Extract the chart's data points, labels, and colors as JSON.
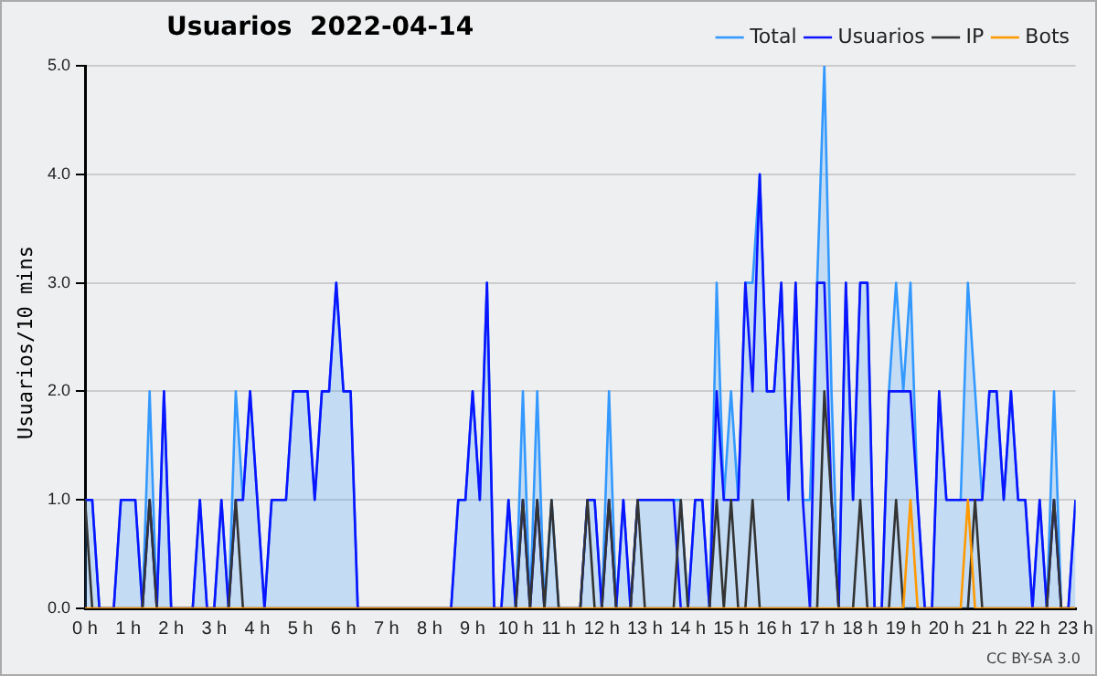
{
  "chart_data": {
    "type": "line",
    "title": "Usuarios  2022-04-14",
    "ylabel": "Usuarios/10 mins",
    "x": [
      0,
      0.167,
      0.333,
      0.5,
      0.667,
      0.833,
      1,
      1.167,
      1.333,
      1.5,
      1.667,
      1.833,
      2,
      2.167,
      2.333,
      2.5,
      2.667,
      2.833,
      3,
      3.167,
      3.333,
      3.5,
      3.667,
      3.833,
      4,
      4.167,
      4.333,
      4.5,
      4.667,
      4.833,
      5,
      5.167,
      5.333,
      5.5,
      5.667,
      5.833,
      6,
      6.167,
      6.333,
      6.5,
      6.667,
      6.833,
      7,
      7.167,
      7.333,
      7.5,
      7.667,
      7.833,
      8,
      8.167,
      8.333,
      8.5,
      8.667,
      8.833,
      9,
      9.167,
      9.333,
      9.5,
      9.667,
      9.833,
      10,
      10.167,
      10.333,
      10.5,
      10.667,
      10.833,
      11,
      11.167,
      11.333,
      11.5,
      11.667,
      11.833,
      12,
      12.167,
      12.333,
      12.5,
      12.667,
      12.833,
      13,
      13.167,
      13.333,
      13.5,
      13.667,
      13.833,
      14,
      14.167,
      14.333,
      14.5,
      14.667,
      14.833,
      15,
      15.167,
      15.333,
      15.5,
      15.667,
      15.833,
      16,
      16.167,
      16.333,
      16.5,
      16.667,
      16.833,
      17,
      17.167,
      17.333,
      17.5,
      17.667,
      17.833,
      18,
      18.167,
      18.333,
      18.5,
      18.667,
      18.833,
      19,
      19.167,
      19.333,
      19.5,
      19.667,
      19.833,
      20,
      20.167,
      20.333,
      20.5,
      20.667,
      20.833,
      21,
      21.167,
      21.333,
      21.5,
      21.667,
      21.833,
      22,
      22.167,
      22.333,
      22.5,
      22.667,
      22.833,
      23
    ],
    "series": [
      {
        "name": "Total",
        "type": "area",
        "color": "#3399ff",
        "values": [
          1,
          1,
          0,
          0,
          0,
          1,
          1,
          1,
          0,
          2,
          0,
          2,
          0,
          0,
          0,
          0,
          1,
          0,
          0,
          1,
          0,
          2,
          1,
          2,
          1,
          0,
          1,
          1,
          1,
          2,
          2,
          2,
          1,
          2,
          2,
          3,
          2,
          2,
          0,
          0,
          0,
          0,
          0,
          0,
          0,
          0,
          0,
          0,
          0,
          0,
          0,
          0,
          1,
          1,
          2,
          1,
          3,
          0,
          0,
          1,
          0,
          2,
          0,
          2,
          0,
          1,
          0,
          0,
          0,
          0,
          1,
          1,
          0,
          2,
          0,
          1,
          0,
          1,
          1,
          1,
          1,
          1,
          1,
          1,
          0,
          1,
          1,
          0,
          3,
          1,
          2,
          1,
          3,
          3,
          4,
          2,
          2,
          3,
          1,
          3,
          1,
          1,
          3,
          5,
          2,
          0,
          3,
          1,
          3,
          3,
          0,
          0,
          2,
          3,
          2,
          3,
          1,
          0,
          0,
          2,
          1,
          1,
          1,
          3,
          2,
          1,
          2,
          2,
          1,
          2,
          1,
          1,
          0,
          1,
          0,
          2,
          0,
          0,
          1
        ]
      },
      {
        "name": "Usuarios",
        "type": "line",
        "color": "#0a14ff",
        "values": [
          1,
          1,
          0,
          0,
          0,
          1,
          1,
          1,
          0,
          1,
          0,
          2,
          0,
          0,
          0,
          0,
          1,
          0,
          0,
          1,
          0,
          1,
          1,
          2,
          1,
          0,
          1,
          1,
          1,
          2,
          2,
          2,
          1,
          2,
          2,
          3,
          2,
          2,
          0,
          0,
          0,
          0,
          0,
          0,
          0,
          0,
          0,
          0,
          0,
          0,
          0,
          0,
          1,
          1,
          2,
          1,
          3,
          0,
          0,
          1,
          0,
          1,
          0,
          1,
          0,
          0,
          0,
          0,
          0,
          0,
          1,
          1,
          0,
          1,
          0,
          1,
          0,
          1,
          1,
          1,
          1,
          1,
          1,
          0,
          0,
          1,
          1,
          0,
          2,
          1,
          1,
          1,
          3,
          2,
          4,
          2,
          2,
          3,
          1,
          3,
          1,
          0,
          3,
          3,
          1,
          0,
          3,
          1,
          3,
          3,
          0,
          0,
          2,
          2,
          2,
          2,
          1,
          0,
          0,
          2,
          1,
          1,
          1,
          1,
          1,
          1,
          2,
          2,
          1,
          2,
          1,
          1,
          0,
          1,
          0,
          1,
          0,
          0,
          1
        ]
      },
      {
        "name": "IP",
        "type": "line",
        "color": "#333333",
        "values": [
          1,
          0,
          0,
          0,
          0,
          0,
          0,
          0,
          0,
          1,
          0,
          0,
          0,
          0,
          0,
          0,
          0,
          0,
          0,
          0,
          0,
          1,
          0,
          0,
          0,
          0,
          0,
          0,
          0,
          0,
          0,
          0,
          0,
          0,
          0,
          0,
          0,
          0,
          0,
          0,
          0,
          0,
          0,
          0,
          0,
          0,
          0,
          0,
          0,
          0,
          0,
          0,
          0,
          0,
          0,
          0,
          0,
          0,
          0,
          0,
          0,
          1,
          0,
          1,
          0,
          1,
          0,
          0,
          0,
          0,
          1,
          0,
          0,
          1,
          0,
          0,
          0,
          1,
          0,
          0,
          0,
          0,
          0,
          1,
          0,
          0,
          0,
          0,
          1,
          0,
          1,
          0,
          0,
          1,
          0,
          0,
          0,
          0,
          0,
          0,
          0,
          0,
          0,
          2,
          1,
          0,
          0,
          0,
          1,
          0,
          0,
          0,
          0,
          1,
          0,
          0,
          0,
          0,
          0,
          0,
          0,
          0,
          0,
          0,
          1,
          0,
          0,
          0,
          0,
          0,
          0,
          0,
          0,
          0,
          0,
          1,
          0,
          0,
          0
        ]
      },
      {
        "name": "Bots",
        "type": "line",
        "color": "#ff9900",
        "values": [
          0,
          0,
          0,
          0,
          0,
          0,
          0,
          0,
          0,
          0,
          0,
          0,
          0,
          0,
          0,
          0,
          0,
          0,
          0,
          0,
          0,
          0,
          0,
          0,
          0,
          0,
          0,
          0,
          0,
          0,
          0,
          0,
          0,
          0,
          0,
          0,
          0,
          0,
          0,
          0,
          0,
          0,
          0,
          0,
          0,
          0,
          0,
          0,
          0,
          0,
          0,
          0,
          0,
          0,
          0,
          0,
          0,
          0,
          0,
          0,
          0,
          0,
          0,
          0,
          0,
          0,
          0,
          0,
          0,
          0,
          0,
          0,
          0,
          0,
          0,
          0,
          0,
          0,
          0,
          0,
          0,
          0,
          0,
          0,
          0,
          0,
          0,
          0,
          0,
          0,
          0,
          0,
          0,
          0,
          0,
          0,
          0,
          0,
          0,
          0,
          0,
          0,
          0,
          0,
          0,
          0,
          0,
          0,
          0,
          0,
          0,
          0,
          0,
          0,
          0,
          1,
          0,
          0,
          0,
          0,
          0,
          0,
          0,
          1,
          0,
          0,
          0,
          0,
          0,
          0,
          0,
          0,
          0,
          0,
          0,
          0,
          0,
          0,
          0
        ]
      }
    ],
    "xlim": [
      0,
      23
    ],
    "xticks": [
      {
        "value": 0,
        "label": "0 h"
      },
      {
        "value": 1,
        "label": "1 h"
      },
      {
        "value": 2,
        "label": "2 h"
      },
      {
        "value": 3,
        "label": "3 h"
      },
      {
        "value": 4,
        "label": "4 h"
      },
      {
        "value": 5,
        "label": "5 h"
      },
      {
        "value": 6,
        "label": "6 h"
      },
      {
        "value": 7,
        "label": "7 h"
      },
      {
        "value": 8,
        "label": "8 h"
      },
      {
        "value": 9,
        "label": "9 h"
      },
      {
        "value": 10,
        "label": "10 h"
      },
      {
        "value": 11,
        "label": "11 h"
      },
      {
        "value": 12,
        "label": "12 h"
      },
      {
        "value": 13,
        "label": "13 h"
      },
      {
        "value": 14,
        "label": "14 h"
      },
      {
        "value": 15,
        "label": "15 h"
      },
      {
        "value": 16,
        "label": "16 h"
      },
      {
        "value": 17,
        "label": "17 h"
      },
      {
        "value": 18,
        "label": "18 h"
      },
      {
        "value": 19,
        "label": "19 h"
      },
      {
        "value": 20,
        "label": "20 h"
      },
      {
        "value": 21,
        "label": "21 h"
      },
      {
        "value": 22,
        "label": "22 h"
      },
      {
        "value": 23,
        "label": "23 h"
      }
    ],
    "ylim": [
      0,
      5
    ],
    "yticks": [
      {
        "value": 0,
        "label": "0.0"
      },
      {
        "value": 1,
        "label": "1.0"
      },
      {
        "value": 2,
        "label": "2.0"
      },
      {
        "value": 3,
        "label": "3.0"
      },
      {
        "value": 4,
        "label": "4.0"
      },
      {
        "value": 5,
        "label": "5.0"
      }
    ],
    "grid": "y",
    "legend": "top right",
    "marker": "none",
    "annotations": [
      "CC BY-SA 3.0"
    ]
  }
}
